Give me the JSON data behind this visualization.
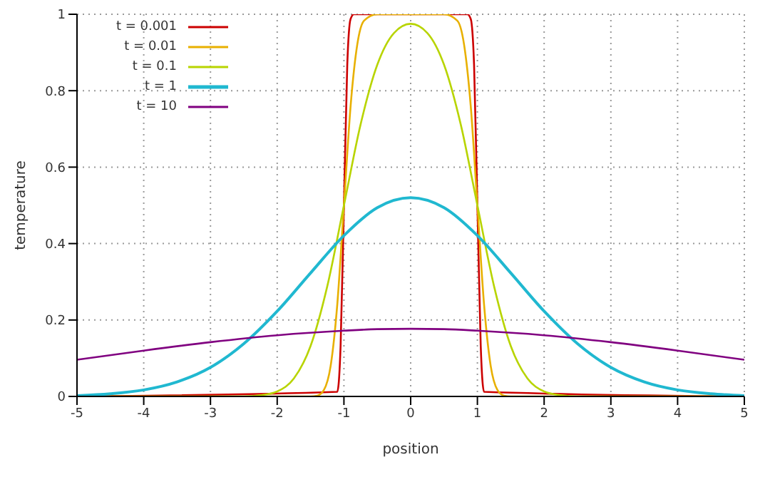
{
  "chart_data": {
    "type": "line",
    "xlabel": "position",
    "ylabel": "temperature",
    "xlim": [
      -5,
      5
    ],
    "xticks": [
      -5,
      -4,
      -3,
      -2,
      -1,
      0,
      1,
      2,
      3,
      4,
      5
    ],
    "ylim": [
      0,
      1
    ],
    "yticks": [
      0,
      0.2,
      0.4,
      0.6,
      0.8,
      1
    ],
    "grid": true,
    "legend": "top left",
    "marker": "none",
    "line_style": "solid",
    "series": [
      {
        "name": "t = 0.001",
        "color": "#cc0000",
        "x": [
          -5,
          -1.1,
          -1.05,
          -1,
          -0.95,
          -0.9,
          -0.85,
          0.85,
          0.9,
          0.95,
          1,
          1.05,
          1.1,
          5
        ],
        "values": [
          0,
          0.012,
          0.132,
          0.5,
          0.868,
          0.988,
          1,
          1,
          0.988,
          0.868,
          0.5,
          0.132,
          0.012,
          0
        ]
      },
      {
        "name": "t = 0.01",
        "color": "#e8b000",
        "x": [
          -5,
          -1.5,
          -1.4,
          -1.3,
          -1.2,
          -1.1,
          -1,
          -0.9,
          -0.8,
          -0.7,
          -0.5,
          0,
          0.5,
          0.7,
          0.8,
          0.9,
          1,
          1.1,
          1.2,
          1.3,
          1.4,
          1.5,
          5
        ],
        "values": [
          0,
          0,
          0.002,
          0.017,
          0.079,
          0.24,
          0.5,
          0.76,
          0.921,
          0.983,
          1,
          1,
          1,
          0.983,
          0.921,
          0.76,
          0.5,
          0.24,
          0.079,
          0.017,
          0.002,
          0,
          0
        ]
      },
      {
        "name": "t = 0.1",
        "color": "#b8d400",
        "x": [
          -5,
          -2.5,
          -2.25,
          -2,
          -1.75,
          -1.5,
          -1.25,
          -1,
          -0.75,
          -0.5,
          -0.25,
          0,
          0.25,
          0.5,
          0.75,
          1,
          1.25,
          1.5,
          1.75,
          2,
          2.25,
          2.5,
          5
        ],
        "values": [
          0,
          0,
          0.003,
          0.013,
          0.047,
          0.132,
          0.288,
          0.5,
          0.712,
          0.868,
          0.951,
          0.975,
          0.951,
          0.868,
          0.712,
          0.5,
          0.288,
          0.132,
          0.047,
          0.013,
          0.003,
          0,
          0
        ]
      },
      {
        "name": "t = 1",
        "color": "#20b8d0",
        "x": [
          -5,
          -4.5,
          -4,
          -3.5,
          -3,
          -2.5,
          -2,
          -1.5,
          -1,
          -0.5,
          0,
          0.5,
          1,
          1.5,
          2,
          2.5,
          3,
          3.5,
          4,
          4.5,
          5
        ],
        "values": [
          0.002,
          0.007,
          0.017,
          0.038,
          0.076,
          0.138,
          0.223,
          0.323,
          0.421,
          0.494,
          0.52,
          0.494,
          0.421,
          0.323,
          0.223,
          0.138,
          0.076,
          0.038,
          0.017,
          0.007,
          0.002
        ]
      },
      {
        "name": "t = 10",
        "color": "#800080",
        "x": [
          -5,
          -4,
          -3,
          -2,
          -1,
          -0.5,
          0,
          0.5,
          1,
          2,
          3,
          4,
          5
        ],
        "values": [
          0.096,
          0.12,
          0.142,
          0.16,
          0.172,
          0.176,
          0.177,
          0.176,
          0.172,
          0.16,
          0.142,
          0.12,
          0.096
        ]
      }
    ]
  }
}
